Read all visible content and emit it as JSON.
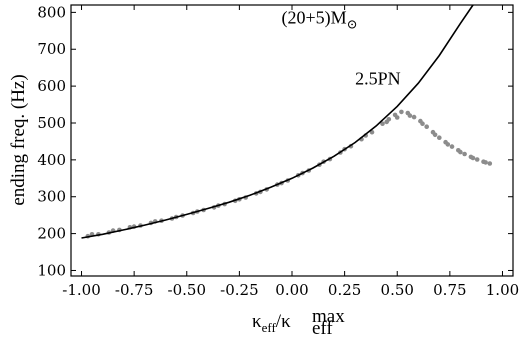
{
  "chart_data": {
    "type": "scatter",
    "title": "",
    "xlabel": "κeff/κeffmax",
    "xlabel_parts": {
      "symbol": "κ",
      "sub_num": "eff",
      "den_symbol": "κ",
      "den_sub": "eff",
      "den_sup": "max"
    },
    "ylabel": "ending freq. (Hz)",
    "xlim": [
      -1.05,
      1.05
    ],
    "ylim": [
      85,
      820
    ],
    "xticks": [
      -1.0,
      -0.75,
      -0.5,
      -0.25,
      0.0,
      0.25,
      0.5,
      0.75,
      1.0
    ],
    "xtick_labels": [
      "-1.00",
      "-0.75",
      "-0.50",
      "-0.25",
      "0.00",
      "0.25",
      "0.50",
      "0.75",
      "1.00"
    ],
    "yticks": [
      100,
      200,
      300,
      400,
      500,
      600,
      700,
      800
    ],
    "ytick_labels": [
      "100",
      "200",
      "300",
      "400",
      "500",
      "600",
      "700",
      "800"
    ],
    "grid": false,
    "legend": "none",
    "annotations": [
      {
        "text": "(20+5)M",
        "suffix": "⊙",
        "x": -0.05,
        "y": 770
      },
      {
        "text": "2.5PN",
        "x": 0.3,
        "y": 605
      }
    ],
    "series": [
      {
        "kind": "line",
        "color": "#000000",
        "x": [
          -1.0,
          -0.9,
          -0.8,
          -0.7,
          -0.6,
          -0.5,
          -0.4,
          -0.3,
          -0.2,
          -0.1,
          0.0,
          0.1,
          0.2,
          0.3,
          0.4,
          0.5,
          0.6,
          0.7,
          0.8,
          0.86
        ],
        "y": [
          188,
          198,
          210,
          223,
          237,
          252,
          268,
          285,
          304,
          326,
          350,
          378,
          410,
          447,
          492,
          545,
          608,
          683,
          770,
          825
        ]
      },
      {
        "kind": "points",
        "color": "#8c8c8c",
        "x": [
          -0.97,
          -0.92,
          -0.87,
          -0.82,
          -0.77,
          -0.72,
          -0.67,
          -0.62,
          -0.57,
          -0.52,
          -0.47,
          -0.42,
          -0.37,
          -0.32,
          -0.27,
          -0.22,
          -0.17,
          -0.12,
          -0.07,
          -0.02,
          0.03,
          0.08,
          0.13,
          0.18,
          0.23,
          0.28,
          0.33,
          0.38,
          0.43,
          0.46,
          0.49,
          0.52,
          0.55,
          0.58,
          0.61,
          0.64,
          0.67,
          0.7,
          0.73,
          0.76,
          0.79,
          0.82,
          0.85,
          0.88,
          0.91,
          0.94,
          -0.95,
          -0.85,
          -0.75,
          -0.65,
          -0.55,
          -0.45,
          -0.35,
          -0.25,
          -0.15,
          -0.05,
          0.05,
          0.15,
          0.25,
          0.35,
          0.45,
          0.5,
          0.56,
          0.62,
          0.68,
          0.74,
          0.8,
          0.86,
          0.92
        ],
        "y": [
          193,
          198,
          203,
          210,
          217,
          222,
          229,
          235,
          241,
          249,
          256,
          264,
          271,
          280,
          289,
          298,
          309,
          320,
          333,
          344,
          358,
          371,
          387,
          402,
          420,
          437,
          456,
          475,
          498,
          510,
          522,
          530,
          527,
          516,
          505,
          490,
          475,
          460,
          448,
          436,
          426,
          416,
          408,
          401,
          395,
          390,
          198,
          208,
          219,
          233,
          245,
          260,
          276,
          293,
          313,
          337,
          364,
          395,
          429,
          466,
          503,
          515,
          520,
          498,
          468,
          442,
          421,
          405,
          393
        ]
      }
    ]
  }
}
